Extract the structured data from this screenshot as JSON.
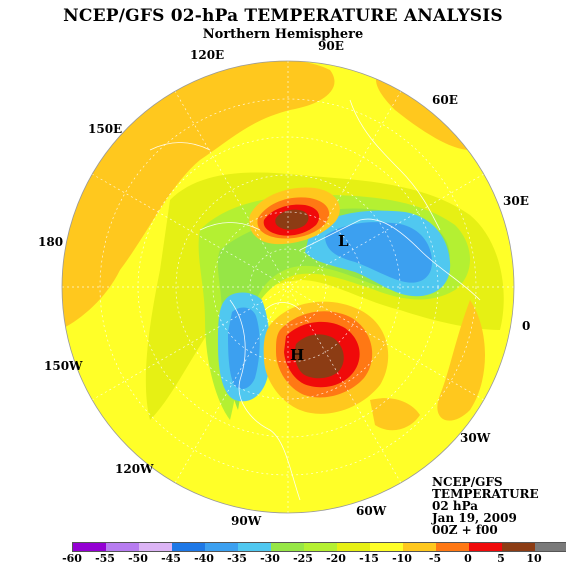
{
  "header": {
    "title": "NCEP/GFS 02-hPa TEMPERATURE ANALYSIS",
    "subtitle": "Northern Hemisphere"
  },
  "longitude_labels": [
    {
      "text": "90E",
      "name": "lon-90e-label"
    },
    {
      "text": "60E",
      "name": "lon-60e-label"
    },
    {
      "text": "30E",
      "name": "lon-30e-label"
    },
    {
      "text": "0",
      "name": "lon-0-label"
    },
    {
      "text": "30W",
      "name": "lon-30w-label"
    },
    {
      "text": "60W",
      "name": "lon-60w-label"
    },
    {
      "text": "90W",
      "name": "lon-90w-label"
    },
    {
      "text": "120W",
      "name": "lon-120w-label"
    },
    {
      "text": "150W",
      "name": "lon-150w-label"
    },
    {
      "text": "180",
      "name": "lon-180-label"
    },
    {
      "text": "150E",
      "name": "lon-150e-label"
    },
    {
      "text": "120E",
      "name": "lon-120e-label"
    }
  ],
  "centers": {
    "low": "L",
    "high": "H"
  },
  "info_block": {
    "line1": "NCEP/GFS",
    "line2": "TEMPERATURE",
    "line3": "02 hPa",
    "line4": "Jan 19, 2009",
    "line5": "00Z + f00"
  },
  "legend": {
    "ticks": [
      "-60",
      "-55",
      "-50",
      "-45",
      "-40",
      "-35",
      "-30",
      "-25",
      "-20",
      "-15",
      "-10",
      "-5",
      "0",
      "5",
      "10"
    ],
    "colors": [
      "#9400d3",
      "#b77cf0",
      "#dcb4f5",
      "#1e78e6",
      "#3ca0f0",
      "#50c8f0",
      "#96e646",
      "#b4f032",
      "#e6f014",
      "#ffff28",
      "#ffc81e",
      "#ff7814",
      "#f00a0a",
      "#8c3c14",
      "#7a7a7a"
    ]
  }
}
